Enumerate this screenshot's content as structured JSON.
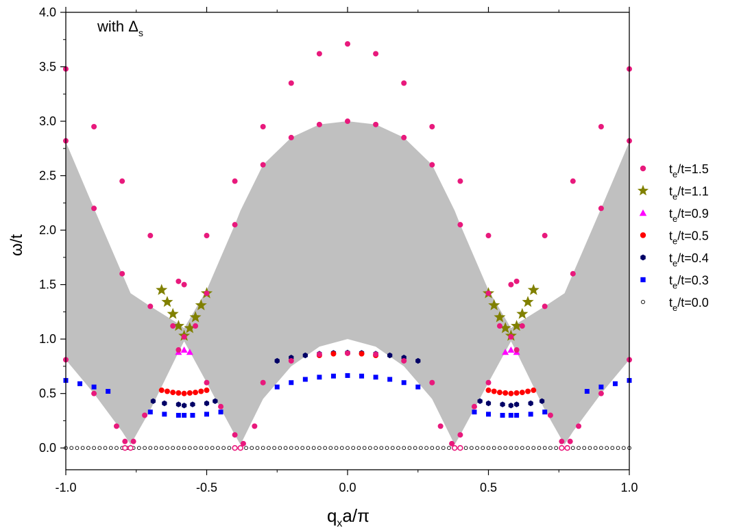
{
  "chart_data": {
    "type": "scatter",
    "xlabel": "q_x a/π",
    "ylabel": "ω/t",
    "annotation": "with Δ_s",
    "xlim": [
      -1.0,
      1.0
    ],
    "ylim": [
      -0.2,
      4.0
    ],
    "xticks": [
      "-1.0",
      "-0.5",
      "0.0",
      "0.5",
      "1.0"
    ],
    "yticks": [
      "0.0",
      "0.5",
      "1.0",
      "1.5",
      "2.0",
      "2.5",
      "3.0",
      "3.5",
      "4.0"
    ],
    "legend_position": "right",
    "shaded_region": {
      "color": "#c0c0c0",
      "description": "two-particle continuum",
      "x": [
        -1.0,
        -0.9,
        -0.8,
        -0.77,
        -0.7,
        -0.6,
        -0.58,
        -0.5,
        -0.4,
        -0.38,
        -0.3,
        -0.2,
        -0.1,
        0.0
      ],
      "lower": [
        0.81,
        0.5,
        0.15,
        0.03,
        0.35,
        0.88,
        0.98,
        0.6,
        0.12,
        0.03,
        0.45,
        0.75,
        0.93,
        1.0
      ],
      "upper": [
        2.81,
        2.2,
        1.6,
        1.42,
        1.3,
        1.14,
        1.1,
        1.45,
        2.05,
        2.18,
        2.6,
        2.85,
        2.97,
        3.0
      ]
    },
    "series": [
      {
        "name": "t_e/t=1.5",
        "legend_main": "t",
        "legend_sub": "e",
        "legend_rest": "/t=1.5",
        "marker": "circle",
        "color": "#e8197c",
        "branches": [
          {
            "x": [
              -1.0,
              -0.9,
              -0.8,
              -0.7,
              -0.6,
              -0.58,
              -0.5,
              -0.4,
              -0.3,
              -0.2,
              -0.1,
              0.0,
              0.1,
              0.2,
              0.3,
              0.4,
              0.5,
              0.58,
              0.6,
              0.7,
              0.8,
              0.9,
              1.0
            ],
            "y": [
              3.48,
              2.95,
              2.45,
              1.95,
              1.53,
              1.5,
              1.95,
              2.45,
              2.95,
              3.35,
              3.62,
              3.71,
              3.62,
              3.35,
              2.95,
              2.45,
              1.95,
              1.5,
              1.53,
              1.95,
              2.45,
              2.95,
              3.48
            ]
          },
          {
            "x": [
              -1.0,
              -0.9,
              -0.8,
              -0.7,
              -0.62,
              -0.58,
              -0.54,
              -0.5,
              -0.4,
              -0.3,
              -0.2,
              -0.1,
              0.0,
              0.1,
              0.2,
              0.3,
              0.4,
              0.5,
              0.54,
              0.58,
              0.62,
              0.7,
              0.8,
              0.9,
              1.0
            ],
            "y": [
              2.82,
              2.2,
              1.6,
              1.3,
              1.12,
              1.02,
              1.12,
              1.42,
              2.05,
              2.6,
              2.85,
              2.97,
              3.0,
              2.97,
              2.85,
              2.6,
              2.05,
              1.42,
              1.12,
              1.02,
              1.12,
              1.3,
              1.6,
              2.2,
              2.82
            ]
          },
          {
            "x": [
              -1.0,
              -0.9,
              -0.82,
              -0.79,
              -0.76,
              -0.72,
              -0.6,
              -0.5,
              -0.45,
              -0.4,
              -0.37,
              -0.33,
              -0.3,
              -0.2,
              -0.1,
              0.0,
              0.1,
              0.2,
              0.3,
              0.33,
              0.37,
              0.4,
              0.45,
              0.5,
              0.6,
              0.72,
              0.76,
              0.79,
              0.82,
              0.9,
              1.0
            ],
            "y": [
              0.81,
              0.5,
              0.2,
              0.06,
              0.06,
              0.3,
              0.9,
              0.6,
              0.38,
              0.12,
              0.04,
              0.2,
              0.6,
              0.8,
              0.86,
              0.87,
              0.86,
              0.8,
              0.6,
              0.2,
              0.04,
              0.12,
              0.38,
              0.6,
              0.9,
              0.3,
              0.06,
              0.06,
              0.2,
              0.5,
              0.81
            ]
          }
        ]
      },
      {
        "name": "t_e/t=1.1",
        "legend_main": "t",
        "legend_sub": "e",
        "legend_rest": "/t=1.1",
        "marker": "star",
        "color": "#808000",
        "branches": [
          {
            "x": [
              -0.66,
              -0.64,
              -0.62,
              -0.6,
              -0.58,
              -0.56,
              -0.54,
              -0.52,
              -0.5,
              0.5,
              0.52,
              0.54,
              0.56,
              0.58,
              0.6,
              0.62,
              0.64,
              0.66
            ],
            "y": [
              1.45,
              1.34,
              1.23,
              1.12,
              1.03,
              1.1,
              1.2,
              1.31,
              1.42,
              1.42,
              1.31,
              1.2,
              1.1,
              1.03,
              1.12,
              1.23,
              1.34,
              1.45
            ]
          }
        ]
      },
      {
        "name": "t_e/t=0.9",
        "legend_main": "t",
        "legend_sub": "e",
        "legend_rest": "/t=0.9",
        "marker": "triangle",
        "color": "#ff00ff",
        "branches": [
          {
            "x": [
              -0.6,
              -0.58,
              -0.56,
              0.56,
              0.58,
              0.6
            ],
            "y": [
              0.88,
              0.9,
              0.88,
              0.88,
              0.9,
              0.88
            ]
          }
        ]
      },
      {
        "name": "t_e/t=0.5",
        "legend_main": "t",
        "legend_sub": "e",
        "legend_rest": "/t=0.5",
        "marker": "circle",
        "color": "#ff0000",
        "branches": [
          {
            "x": [
              -0.66,
              -0.64,
              -0.62,
              -0.6,
              -0.58,
              -0.56,
              -0.54,
              -0.52,
              -0.5
            ],
            "y": [
              0.53,
              0.52,
              0.51,
              0.505,
              0.5,
              0.505,
              0.51,
              0.52,
              0.53
            ]
          },
          {
            "x": [
              0.5,
              0.52,
              0.54,
              0.56,
              0.58,
              0.6,
              0.62,
              0.64,
              0.66
            ],
            "y": [
              0.53,
              0.52,
              0.51,
              0.505,
              0.5,
              0.505,
              0.51,
              0.52,
              0.53
            ]
          },
          {
            "x": [
              -0.1,
              -0.05,
              0.0,
              0.05,
              0.1
            ],
            "y": [
              0.85,
              0.865,
              0.87,
              0.865,
              0.85
            ]
          }
        ]
      },
      {
        "name": "t_e/t=0.4",
        "legend_main": "t",
        "legend_sub": "e",
        "legend_rest": "/t=0.4",
        "marker": "hexagon",
        "color": "#000066",
        "branches": [
          {
            "x": [
              -0.69,
              -0.65,
              -0.6,
              -0.58,
              -0.55,
              -0.5,
              -0.47
            ],
            "y": [
              0.43,
              0.41,
              0.4,
              0.39,
              0.4,
              0.41,
              0.43
            ]
          },
          {
            "x": [
              0.47,
              0.5,
              0.55,
              0.58,
              0.6,
              0.65,
              0.69
            ],
            "y": [
              0.43,
              0.41,
              0.4,
              0.39,
              0.4,
              0.41,
              0.43
            ]
          },
          {
            "x": [
              -0.25,
              -0.2,
              -0.15,
              -0.1,
              -0.05,
              0.0,
              0.05,
              0.1,
              0.15,
              0.2,
              0.25
            ],
            "y": [
              0.8,
              0.83,
              0.85,
              0.865,
              0.872,
              0.875,
              0.872,
              0.865,
              0.85,
              0.83,
              0.8
            ]
          }
        ]
      },
      {
        "name": "t_e/t=0.3",
        "legend_main": "t",
        "legend_sub": "e",
        "legend_rest": "/t=0.3",
        "marker": "square",
        "color": "#0000ff",
        "branches": [
          {
            "x": [
              -1.0,
              -0.95,
              -0.9,
              -0.85
            ],
            "y": [
              0.62,
              0.59,
              0.56,
              0.52
            ]
          },
          {
            "x": [
              -0.7,
              -0.65,
              -0.6,
              -0.58,
              -0.55,
              -0.5,
              -0.45
            ],
            "y": [
              0.33,
              0.31,
              0.3,
              0.3,
              0.3,
              0.31,
              0.33
            ]
          },
          {
            "x": [
              -0.25,
              -0.2,
              -0.15,
              -0.1,
              -0.05,
              0.0,
              0.05,
              0.1,
              0.15,
              0.2,
              0.25
            ],
            "y": [
              0.56,
              0.6,
              0.63,
              0.65,
              0.66,
              0.665,
              0.66,
              0.65,
              0.63,
              0.6,
              0.56
            ]
          },
          {
            "x": [
              0.45,
              0.5,
              0.55,
              0.58,
              0.6,
              0.65,
              0.7
            ],
            "y": [
              0.33,
              0.31,
              0.3,
              0.3,
              0.3,
              0.31,
              0.33
            ]
          },
          {
            "x": [
              0.85,
              0.9,
              0.95,
              1.0
            ],
            "y": [
              0.52,
              0.56,
              0.59,
              0.62
            ]
          }
        ]
      },
      {
        "name": "t_e/t=0.0",
        "legend_main": "t",
        "legend_sub": "e",
        "legend_rest": "/t=0.0",
        "marker": "open-circle",
        "color": "#000000",
        "branches": [
          {
            "x_range": [
              -1.0,
              1.0
            ],
            "x_step": 0.02,
            "y": 0.0
          }
        ]
      }
    ],
    "zero_marks": {
      "color": "#e8197c",
      "x": [
        -0.79,
        -0.77,
        -0.4,
        -0.38,
        0.38,
        0.4,
        0.76,
        0.78
      ],
      "y": 0.0
    }
  }
}
